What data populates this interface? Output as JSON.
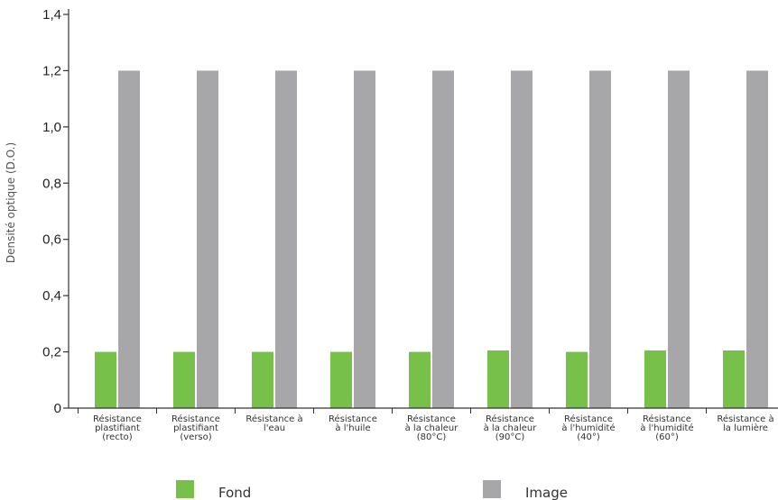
{
  "chart_data": {
    "type": "bar",
    "ylabel": "Densité optique (D.O.)",
    "ylim": [
      0,
      1.4
    ],
    "yticks": [
      {
        "value": 0,
        "label": "0"
      },
      {
        "value": 0.2,
        "label": "0,2"
      },
      {
        "value": 0.4,
        "label": "0,4"
      },
      {
        "value": 0.6,
        "label": "0,6"
      },
      {
        "value": 0.8,
        "label": "0,8"
      },
      {
        "value": 1.0,
        "label": "1,0"
      },
      {
        "value": 1.2,
        "label": "1,2"
      },
      {
        "value": 1.4,
        "label": "1,4"
      }
    ],
    "categories": [
      [
        "Résistance",
        "plastifiant",
        "(recto)"
      ],
      [
        "Résistance",
        "plastifiant",
        "(verso)"
      ],
      [
        "Résistance à",
        "l'eau"
      ],
      [
        "Résistance",
        "à l'huile"
      ],
      [
        "Résistance",
        "à la chaleur",
        "(80°C)"
      ],
      [
        "Résistance",
        "à la chaleur",
        "(90°C)"
      ],
      [
        "Résistance",
        "à l'humidité",
        "(40°)"
      ],
      [
        "Résistance",
        "à l'humidité",
        "(60°)"
      ],
      [
        "Résistance à",
        "la lumière"
      ]
    ],
    "series": [
      {
        "name": "Fond",
        "color": "#77c04a",
        "values": [
          0.2,
          0.2,
          0.2,
          0.2,
          0.2,
          0.205,
          0.2,
          0.205,
          0.205
        ]
      },
      {
        "name": "Image",
        "color": "#a7a7a9",
        "values": [
          1.2,
          1.2,
          1.2,
          1.2,
          1.2,
          1.2,
          1.2,
          1.2,
          1.2
        ]
      }
    ],
    "grid": false,
    "legend_position": "bottom"
  }
}
